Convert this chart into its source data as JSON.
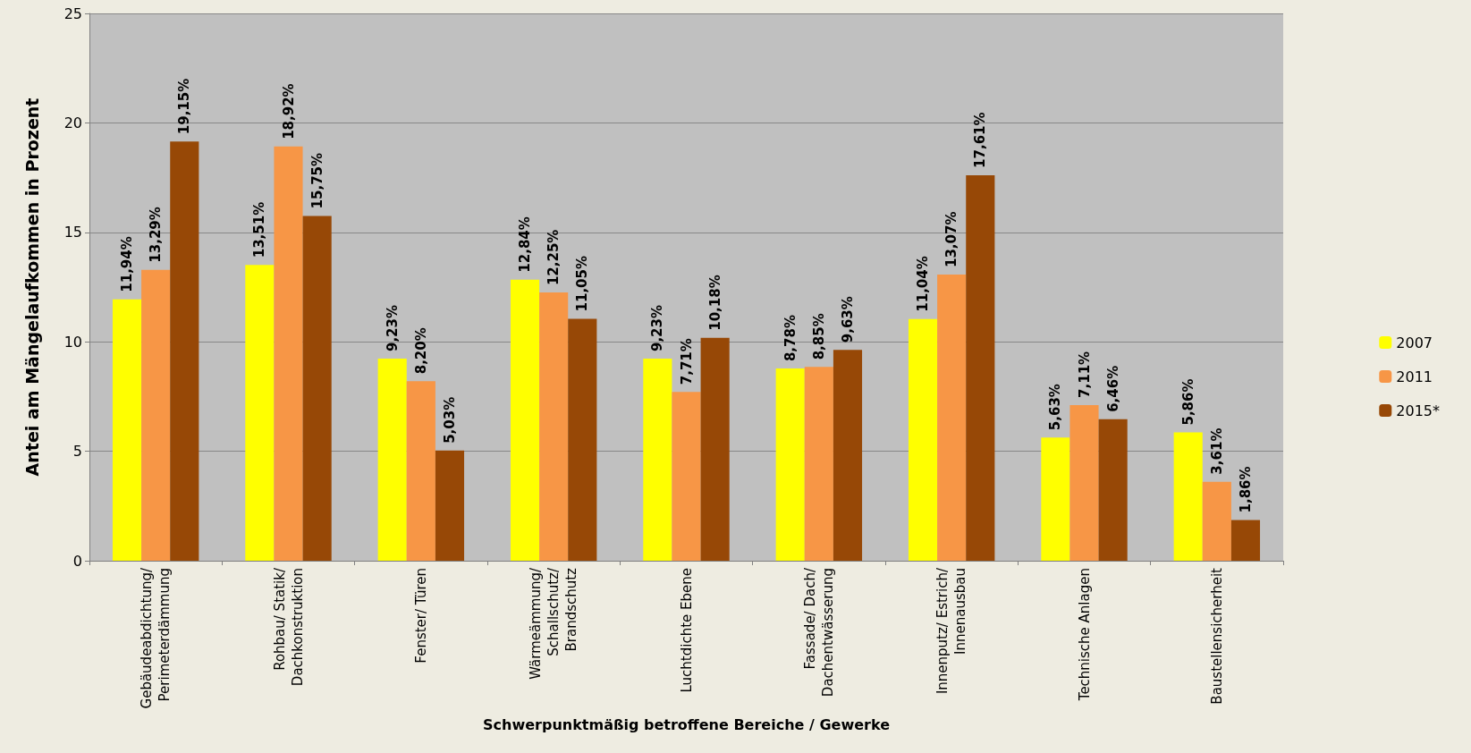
{
  "chart_data": {
    "type": "bar",
    "xlabel": "Schwerpunktmäßig betroffene Bereiche / Gewerke",
    "ylabel": "Antei am Mängelaufkommen in Prozent",
    "categories": [
      "Gebäudeabdichtung/ Perimeterdämmung",
      "Rohbau/ Statik/ Dachkonstruktion",
      "Fenster/ Türen",
      "Wärmeämmung/ Schallschutz/ Brandschutz",
      "Luchtdichte Ebene",
      "Fassade/ Dach/ Dachentwässerung",
      "Innenputz/ Estrich/ Innenausbau",
      "Technische Anlagen",
      "Baustellensicherheit"
    ],
    "series": [
      {
        "name": "2007",
        "color": "#ffff00",
        "values": [
          11.94,
          13.51,
          9.23,
          12.84,
          9.23,
          8.78,
          11.04,
          5.63,
          5.86
        ],
        "value_labels": [
          "11,94%",
          "13,51%",
          "9,23%",
          "12,84%",
          "9,23%",
          "8,78%",
          "11,04%",
          "5,63%",
          "5,86%"
        ]
      },
      {
        "name": "2011",
        "color": "#f79646",
        "values": [
          13.29,
          18.92,
          8.2,
          12.25,
          7.71,
          8.85,
          13.07,
          7.11,
          3.61
        ],
        "value_labels": [
          "13,29%",
          "18,92%",
          "8,20%",
          "12,25%",
          "7,71%",
          "8,85%",
          "13,07%",
          "7,11%",
          "3,61%"
        ]
      },
      {
        "name": "2015*",
        "color": "#974806",
        "values": [
          19.15,
          15.75,
          5.03,
          11.05,
          10.18,
          9.63,
          17.61,
          6.46,
          1.86
        ],
        "value_labels": [
          "19,15%",
          "15,75%",
          "5,03%",
          "11,05%",
          "10,18%",
          "9,63%",
          "17,61%",
          "6,46%",
          "1,86%"
        ]
      }
    ],
    "ylim": [
      0,
      25
    ],
    "yticks": [
      0,
      5,
      10,
      15,
      20,
      25
    ],
    "grid": "y",
    "legend": "right"
  }
}
